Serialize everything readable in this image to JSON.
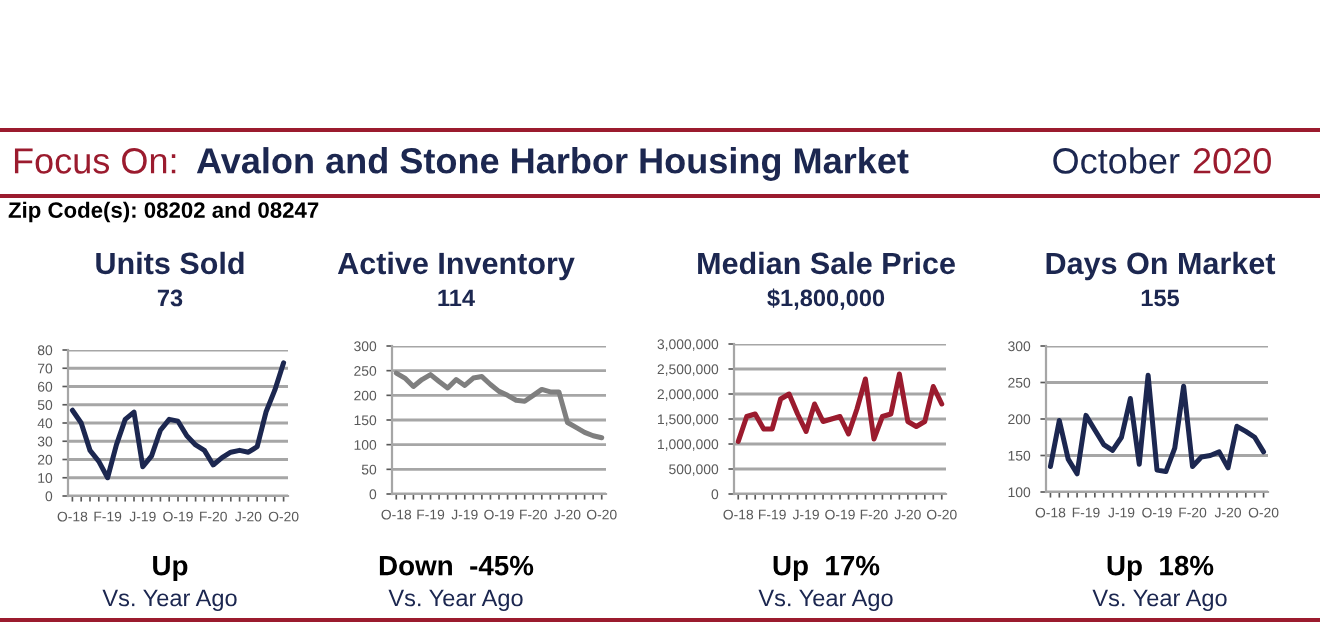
{
  "chart_data": [
    {
      "type": "other",
      "title": "Avalon and Stone Harbor Housing Market",
      "annotations": [
        "Focus On:",
        "October",
        "2020",
        "Zip Code(s): 08202 and 08247"
      ]
    },
    {
      "type": "line",
      "title": "Units Sold",
      "subtitle": "73",
      "annotations": [
        "Up",
        "Vs. Year Ago"
      ],
      "categories": [
        "O-18",
        null,
        null,
        null,
        "F-19",
        null,
        null,
        null,
        "J-19",
        null,
        null,
        null,
        "O-19",
        null,
        null,
        null,
        "F-20",
        null,
        null,
        null,
        "J-20",
        null,
        null,
        null,
        "O-20"
      ],
      "series": [
        {
          "color": "#1c2750",
          "values": [
            47,
            40,
            25,
            19,
            10,
            28,
            42,
            46,
            16,
            22,
            36,
            42,
            41,
            33,
            28,
            25,
            17,
            21,
            24,
            25,
            24,
            27,
            46,
            58,
            73
          ]
        }
      ],
      "ylim": [
        0,
        80
      ],
      "yticks": [
        0,
        10,
        20,
        30,
        40,
        50,
        60,
        70,
        80
      ],
      "grid": "y"
    },
    {
      "type": "line",
      "title": "Active Inventory",
      "subtitle": "114",
      "annotations": [
        "Down  -45%",
        "Vs. Year Ago"
      ],
      "categories": [
        "O-18",
        null,
        null,
        null,
        "F-19",
        null,
        null,
        null,
        "J-19",
        null,
        null,
        null,
        "O-19",
        null,
        null,
        null,
        "F-20",
        null,
        null,
        null,
        "J-20",
        null,
        null,
        null,
        "O-20"
      ],
      "series": [
        {
          "color": "#7f7f7f",
          "values": [
            245,
            235,
            218,
            232,
            242,
            228,
            215,
            232,
            220,
            235,
            238,
            222,
            208,
            200,
            190,
            188,
            200,
            212,
            207,
            207,
            145,
            135,
            125,
            118,
            114
          ]
        }
      ],
      "ylim": [
        0,
        300
      ],
      "yticks": [
        0,
        50,
        100,
        150,
        200,
        250,
        300
      ],
      "grid": "y"
    },
    {
      "type": "line",
      "title": "Median Sale Price",
      "subtitle": "$1,800,000",
      "annotations": [
        "Up  17%",
        "Vs. Year Ago"
      ],
      "categories": [
        "O-18",
        null,
        null,
        null,
        "F-19",
        null,
        null,
        null,
        "J-19",
        null,
        null,
        null,
        "O-19",
        null,
        null,
        null,
        "F-20",
        null,
        null,
        null,
        "J-20",
        null,
        null,
        null,
        "O-20"
      ],
      "series": [
        {
          "color": "#9b1b2e",
          "values": [
            1050000,
            1550000,
            1600000,
            1300000,
            1300000,
            1900000,
            2000000,
            1600000,
            1250000,
            1800000,
            1450000,
            1500000,
            1550000,
            1200000,
            1700000,
            2300000,
            1100000,
            1550000,
            1600000,
            2400000,
            1450000,
            1350000,
            1450000,
            2150000,
            1800000
          ]
        }
      ],
      "ylim": [
        0,
        3000000
      ],
      "yticks": [
        {
          "value": 0,
          "label": "0"
        },
        {
          "value": 500000,
          "label": "500,000"
        },
        {
          "value": 1000000,
          "label": "1,000,000"
        },
        {
          "value": 1500000,
          "label": "1,500,000"
        },
        {
          "value": 2000000,
          "label": "2,000,000"
        },
        {
          "value": 2500000,
          "label": "2,500,000"
        },
        {
          "value": 3000000,
          "label": "3,000,000"
        }
      ],
      "grid": "y"
    },
    {
      "type": "line",
      "title": "Days On Market",
      "subtitle": "155",
      "annotations": [
        "Up  18%",
        "Vs. Year Ago"
      ],
      "categories": [
        "O-18",
        null,
        null,
        null,
        "F-19",
        null,
        null,
        null,
        "J-19",
        null,
        null,
        null,
        "O-19",
        null,
        null,
        null,
        "F-20",
        null,
        null,
        null,
        "J-20",
        null,
        null,
        null,
        "O-20"
      ],
      "series": [
        {
          "color": "#1c2750",
          "values": [
            135,
            198,
            145,
            125,
            205,
            185,
            165,
            157,
            175,
            228,
            138,
            260,
            130,
            128,
            160,
            245,
            135,
            148,
            150,
            155,
            133,
            190,
            183,
            175,
            155
          ]
        }
      ],
      "ylim": [
        100,
        300
      ],
      "yticks": [
        100,
        150,
        200,
        250,
        300
      ],
      "grid": "y"
    }
  ]
}
